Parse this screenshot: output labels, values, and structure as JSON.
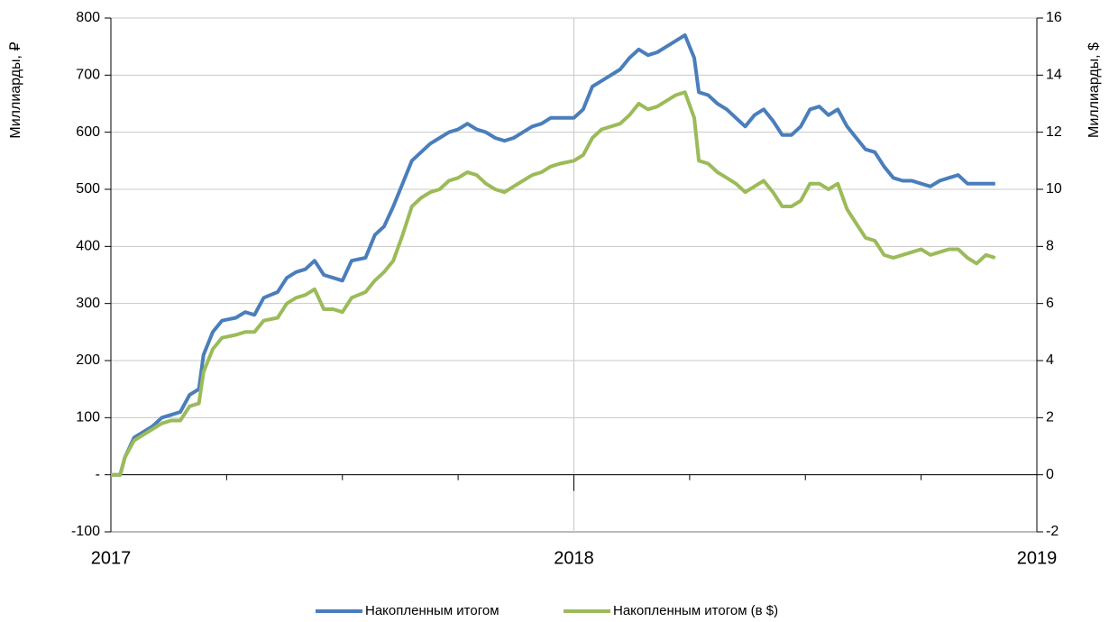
{
  "chart_data": {
    "type": "line",
    "ylabel": "Миллиарды, ₽",
    "y2label": "Миллиарды, $",
    "xlim": [
      2017,
      2019
    ],
    "xticks": [
      2017,
      2018,
      2019
    ],
    "xminorticks": [
      2017.25,
      2017.5,
      2017.75,
      2018.25,
      2018.5,
      2018.75
    ],
    "ylim": [
      -100,
      800
    ],
    "yticks": [
      -100,
      {
        "value": 0,
        "label": "-"
      },
      100,
      200,
      300,
      400,
      500,
      600,
      700,
      800
    ],
    "y2lim": [
      -2,
      16
    ],
    "y2ticks": [
      -2,
      0,
      2,
      4,
      6,
      8,
      10,
      12,
      14,
      16
    ],
    "grid": true,
    "legend": "bottom",
    "x": [
      2017.0,
      2017.02,
      2017.03,
      2017.05,
      2017.07,
      2017.09,
      2017.11,
      2017.13,
      2017.15,
      2017.17,
      2017.19,
      2017.2,
      2017.22,
      2017.24,
      2017.27,
      2017.29,
      2017.31,
      2017.33,
      2017.36,
      2017.38,
      2017.4,
      2017.42,
      2017.44,
      2017.46,
      2017.48,
      2017.5,
      2017.52,
      2017.55,
      2017.57,
      2017.59,
      2017.61,
      2017.63,
      2017.65,
      2017.67,
      2017.69,
      2017.71,
      2017.73,
      2017.75,
      2017.77,
      2017.79,
      2017.81,
      2017.83,
      2017.85,
      2017.87,
      2017.89,
      2017.91,
      2017.93,
      2017.95,
      2017.97,
      2018.0,
      2018.02,
      2018.04,
      2018.06,
      2018.08,
      2018.1,
      2018.12,
      2018.14,
      2018.16,
      2018.18,
      2018.2,
      2018.22,
      2018.24,
      2018.26,
      2018.27,
      2018.29,
      2018.31,
      2018.33,
      2018.35,
      2018.37,
      2018.39,
      2018.41,
      2018.43,
      2018.45,
      2018.47,
      2018.49,
      2018.51,
      2018.53,
      2018.55,
      2018.57,
      2018.59,
      2018.61,
      2018.63,
      2018.65,
      2018.67,
      2018.69,
      2018.71,
      2018.73,
      2018.75,
      2018.77,
      2018.79,
      2018.81,
      2018.83,
      2018.85,
      2018.87,
      2018.89,
      2018.91
    ],
    "series": [
      {
        "name": "Накопленным итогом",
        "color": "#4a7ebb",
        "values": [
          0,
          0,
          30,
          65,
          75,
          85,
          100,
          105,
          110,
          140,
          150,
          210,
          250,
          270,
          275,
          285,
          280,
          310,
          320,
          345,
          355,
          360,
          375,
          350,
          345,
          340,
          375,
          380,
          420,
          435,
          470,
          510,
          550,
          565,
          580,
          590,
          600,
          605,
          615,
          605,
          600,
          590,
          585,
          590,
          600,
          610,
          615,
          625,
          625,
          625,
          640,
          680,
          690,
          700,
          710,
          730,
          745,
          735,
          740,
          750,
          760,
          770,
          730,
          670,
          665,
          650,
          640,
          625,
          610,
          630,
          640,
          620,
          595,
          595,
          610,
          640,
          645,
          630,
          640,
          610,
          590,
          570,
          565,
          540,
          520,
          515,
          515,
          510,
          505,
          515,
          520,
          525,
          510,
          510,
          510,
          510
        ]
      },
      {
        "name": "Накопленным итогом (в $)",
        "color": "#9bbb59",
        "axis": "y2",
        "values": [
          0,
          0,
          0.6,
          1.2,
          1.4,
          1.6,
          1.8,
          1.9,
          1.9,
          2.4,
          2.5,
          3.6,
          4.4,
          4.8,
          4.9,
          5.0,
          5.0,
          5.4,
          5.5,
          6.0,
          6.2,
          6.3,
          6.5,
          5.8,
          5.8,
          5.7,
          6.2,
          6.4,
          6.8,
          7.1,
          7.5,
          8.4,
          9.4,
          9.7,
          9.9,
          10.0,
          10.3,
          10.4,
          10.6,
          10.5,
          10.2,
          10.0,
          9.9,
          10.1,
          10.3,
          10.5,
          10.6,
          10.8,
          10.9,
          11.0,
          11.2,
          11.8,
          12.1,
          12.2,
          12.3,
          12.6,
          13.0,
          12.8,
          12.9,
          13.1,
          13.3,
          13.4,
          12.5,
          11.0,
          10.9,
          10.6,
          10.4,
          10.2,
          9.9,
          10.1,
          10.3,
          9.9,
          9.4,
          9.4,
          9.6,
          10.2,
          10.2,
          10.0,
          10.2,
          9.3,
          8.8,
          8.3,
          8.2,
          7.7,
          7.6,
          7.7,
          7.8,
          7.9,
          7.7,
          7.8,
          7.9,
          7.9,
          7.6,
          7.4,
          7.7,
          7.6
        ]
      }
    ]
  }
}
